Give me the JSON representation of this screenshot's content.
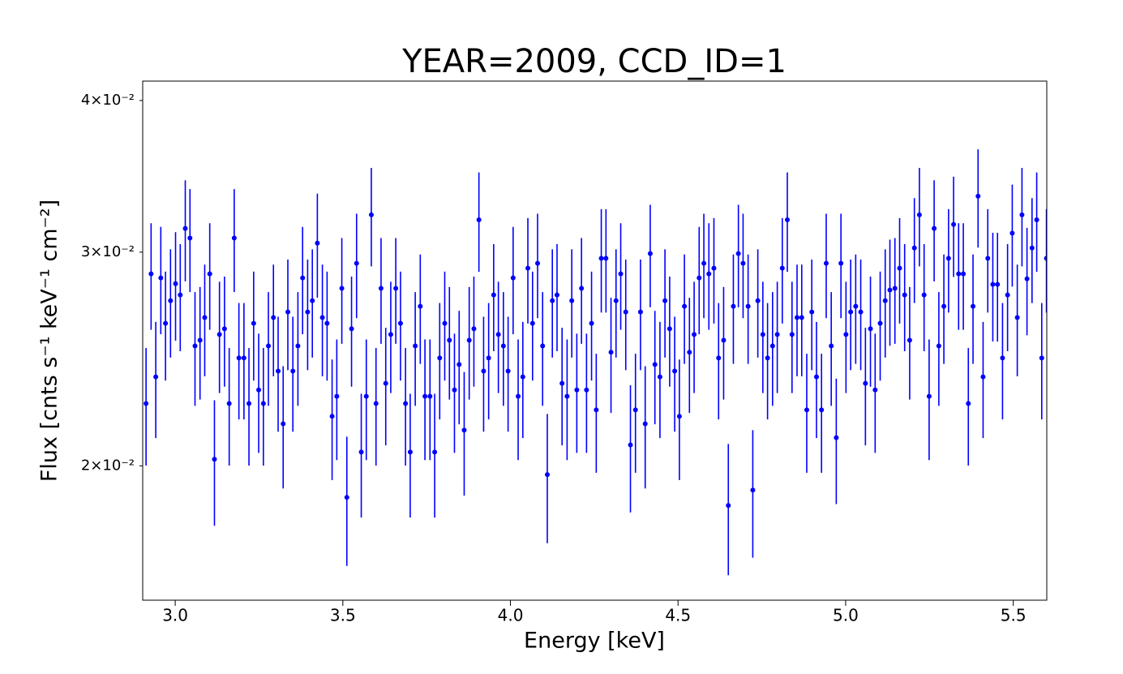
{
  "chart_data": {
    "type": "errorbar",
    "title": "YEAR=2009, CCD_ID=1",
    "xlabel": "Energy [keV]",
    "ylabel": "Flux [cnts s⁻¹ keV⁻¹ cm⁻²]",
    "color": "#0000ff",
    "ylog": true,
    "grid": false,
    "xlim": [
      2.903,
      5.6
    ],
    "ylim": [
      0.0155,
      0.0415
    ],
    "xticks": [
      {
        "value": 3,
        "label": "3.0"
      },
      3.5,
      {
        "value": 4,
        "label": "4.0"
      },
      4.5,
      {
        "value": 5,
        "label": "5.0"
      },
      5.5
    ],
    "yticks": [
      {
        "value": 0.02,
        "label": "2×10⁻²"
      },
      {
        "value": 0.03,
        "label": "3×10⁻²"
      },
      {
        "value": 0.04,
        "label": "4×10⁻²"
      }
    ],
    "x": [
      2.913,
      2.928,
      2.942,
      2.957,
      2.971,
      2.986,
      3.001,
      3.015,
      3.03,
      3.044,
      3.059,
      3.074,
      3.088,
      3.103,
      3.117,
      3.132,
      3.147,
      3.161,
      3.176,
      3.19,
      3.205,
      3.22,
      3.234,
      3.249,
      3.263,
      3.278,
      3.293,
      3.307,
      3.322,
      3.336,
      3.351,
      3.366,
      3.38,
      3.395,
      3.409,
      3.424,
      3.439,
      3.453,
      3.468,
      3.482,
      3.497,
      3.512,
      3.526,
      3.541,
      3.555,
      3.57,
      3.585,
      3.599,
      3.614,
      3.628,
      3.643,
      3.658,
      3.672,
      3.687,
      3.701,
      3.716,
      3.731,
      3.745,
      3.76,
      3.774,
      3.789,
      3.804,
      3.818,
      3.833,
      3.847,
      3.862,
      3.877,
      3.891,
      3.906,
      3.92,
      3.935,
      3.95,
      3.964,
      3.979,
      3.993,
      4.008,
      4.023,
      4.037,
      4.052,
      4.066,
      4.081,
      4.096,
      4.11,
      4.125,
      4.139,
      4.154,
      4.169,
      4.183,
      4.198,
      4.212,
      4.227,
      4.242,
      4.256,
      4.271,
      4.285,
      4.3,
      4.315,
      4.329,
      4.344,
      4.358,
      4.373,
      4.388,
      4.402,
      4.417,
      4.431,
      4.446,
      4.461,
      4.475,
      4.49,
      4.504,
      4.519,
      4.534,
      4.548,
      4.563,
      4.577,
      4.592,
      4.607,
      4.621,
      4.636,
      4.65,
      4.665,
      4.68,
      4.694,
      4.709,
      4.723,
      4.738,
      4.753,
      4.767,
      4.782,
      4.796,
      4.811,
      4.826,
      4.84,
      4.855,
      4.869,
      4.884,
      4.899,
      4.913,
      4.928,
      4.942,
      4.957,
      4.972,
      4.986,
      5.001,
      5.015,
      5.03,
      5.045,
      5.059,
      5.074,
      5.088,
      5.103,
      5.118,
      5.132,
      5.147,
      5.161,
      5.176,
      5.191,
      5.205,
      5.22,
      5.234,
      5.249,
      5.264,
      5.278,
      5.293,
      5.307,
      5.322,
      5.337,
      5.351,
      5.366,
      5.38,
      5.395,
      5.41,
      5.424,
      5.439,
      5.453,
      5.468,
      5.483,
      5.497,
      5.512,
      5.526,
      5.541,
      5.556,
      5.57,
      5.585,
      5.599
    ],
    "values": [
      0.02251,
      0.02879,
      0.02368,
      0.02857,
      0.02621,
      0.02736,
      0.02826,
      0.02766,
      0.03138,
      0.03081,
      0.02511,
      0.02538,
      0.0265,
      0.02879,
      0.02025,
      0.02566,
      0.02594,
      0.02251,
      0.03081,
      0.02454,
      0.02454,
      0.02251,
      0.02621,
      0.0231,
      0.02251,
      0.02511,
      0.0265,
      0.02394,
      0.02166,
      0.02678,
      0.02394,
      0.02511,
      0.02857,
      0.02678,
      0.02736,
      0.03052,
      0.0265,
      0.02621,
      0.02197,
      0.02282,
      0.02801,
      0.01884,
      0.02594,
      0.02937,
      0.02053,
      0.02282,
      0.0322,
      0.02251,
      0.02801,
      0.02339,
      0.02566,
      0.02801,
      0.02621,
      0.02251,
      0.02053,
      0.02511,
      0.02707,
      0.02282,
      0.02282,
      0.02053,
      0.02454,
      0.02621,
      0.02538,
      0.0231,
      0.02424,
      0.0214,
      0.02538,
      0.02594,
      0.0319,
      0.02394,
      0.02454,
      0.02766,
      0.02566,
      0.02511,
      0.02394,
      0.02857,
      0.02282,
      0.02368,
      0.0291,
      0.02621,
      0.02937,
      0.02511,
      0.01967,
      0.02736,
      0.02766,
      0.02339,
      0.02282,
      0.02736,
      0.0231,
      0.02801,
      0.0231,
      0.02621,
      0.02224,
      0.02965,
      0.02965,
      0.02481,
      0.02736,
      0.02879,
      0.02678,
      0.02081,
      0.02224,
      0.02678,
      0.02166,
      0.02992,
      0.02424,
      0.02368,
      0.02736,
      0.02594,
      0.02394,
      0.02197,
      0.02707,
      0.02481,
      0.02566,
      0.02857,
      0.02937,
      0.02879,
      0.0291,
      0.02454,
      0.02538,
      0.01855,
      0.02707,
      0.02992,
      0.02937,
      0.02707,
      0.0191,
      0.02736,
      0.02566,
      0.02454,
      0.02511,
      0.02566,
      0.0291,
      0.0319,
      0.02566,
      0.0265,
      0.0265,
      0.02224,
      0.02678,
      0.02368,
      0.02224,
      0.02937,
      0.02511,
      0.0211,
      0.02937,
      0.02566,
      0.02678,
      0.02707,
      0.02678,
      0.02339,
      0.02594,
      0.0231,
      0.02621,
      0.02736,
      0.02792,
      0.02801,
      0.0291,
      0.02766,
      0.02538,
      0.03024,
      0.0322,
      0.02766,
      0.02282,
      0.03138,
      0.02511,
      0.02707,
      0.02965,
      0.03162,
      0.02879,
      0.02879,
      0.02251,
      0.02707,
      0.03336,
      0.02368,
      0.02965,
      0.02822,
      0.02822,
      0.02454,
      0.02766,
      0.0311,
      0.0265,
      0.0322,
      0.02852,
      0.03024,
      0.0319,
      0.02454,
      0.02965
    ],
    "errors": [
      0.0025,
      0.0029,
      0.0026,
      0.0029,
      0.0027,
      0.0028,
      0.0029,
      0.0028,
      0.003,
      0.003,
      0.0027,
      0.0027,
      0.0028,
      0.0029,
      0.0024,
      0.0027,
      0.0027,
      0.0025,
      0.003,
      0.0027,
      0.0027,
      0.0025,
      0.0027,
      0.0026,
      0.0025,
      0.0027,
      0.0028,
      0.0026,
      0.0025,
      0.0028,
      0.0026,
      0.0027,
      0.0029,
      0.0028,
      0.0028,
      0.003,
      0.0028,
      0.0027,
      0.0025,
      0.0026,
      0.0028,
      0.0023,
      0.0027,
      0.0029,
      0.0024,
      0.0026,
      0.003,
      0.0025,
      0.0028,
      0.0026,
      0.0027,
      0.0028,
      0.0027,
      0.0025,
      0.0024,
      0.0027,
      0.0028,
      0.0026,
      0.0026,
      0.0024,
      0.0027,
      0.0027,
      0.0027,
      0.0026,
      0.0026,
      0.0025,
      0.0027,
      0.0027,
      0.003,
      0.0026,
      0.0027,
      0.0028,
      0.0027,
      0.0027,
      0.0026,
      0.0029,
      0.0026,
      0.0026,
      0.0029,
      0.0027,
      0.0029,
      0.0027,
      0.0024,
      0.0028,
      0.0028,
      0.0026,
      0.0026,
      0.0028,
      0.0026,
      0.0028,
      0.0026,
      0.0027,
      0.0025,
      0.0029,
      0.0029,
      0.0027,
      0.0028,
      0.0029,
      0.0028,
      0.0025,
      0.0025,
      0.0028,
      0.0025,
      0.0029,
      0.0026,
      0.0026,
      0.0028,
      0.0027,
      0.0026,
      0.0025,
      0.0028,
      0.0027,
      0.0027,
      0.0029,
      0.0029,
      0.0029,
      0.0029,
      0.0027,
      0.0027,
      0.0023,
      0.0028,
      0.0029,
      0.0029,
      0.0028,
      0.0023,
      0.0028,
      0.0027,
      0.0027,
      0.0027,
      0.0027,
      0.0029,
      0.003,
      0.0027,
      0.0028,
      0.0028,
      0.0025,
      0.0028,
      0.0026,
      0.0025,
      0.0029,
      0.0027,
      0.0025,
      0.0029,
      0.0027,
      0.0028,
      0.0028,
      0.0028,
      0.0026,
      0.0027,
      0.0026,
      0.0027,
      0.0028,
      0.0028,
      0.0028,
      0.0029,
      0.0028,
      0.0027,
      0.003,
      0.003,
      0.0028,
      0.0026,
      0.003,
      0.0027,
      0.0028,
      0.0029,
      0.003,
      0.0029,
      0.0029,
      0.0025,
      0.0028,
      0.0031,
      0.0026,
      0.0029,
      0.0029,
      0.0029,
      0.0027,
      0.0028,
      0.003,
      0.0028,
      0.003,
      0.0029,
      0.003,
      0.003,
      0.0027,
      0.0029
    ]
  }
}
